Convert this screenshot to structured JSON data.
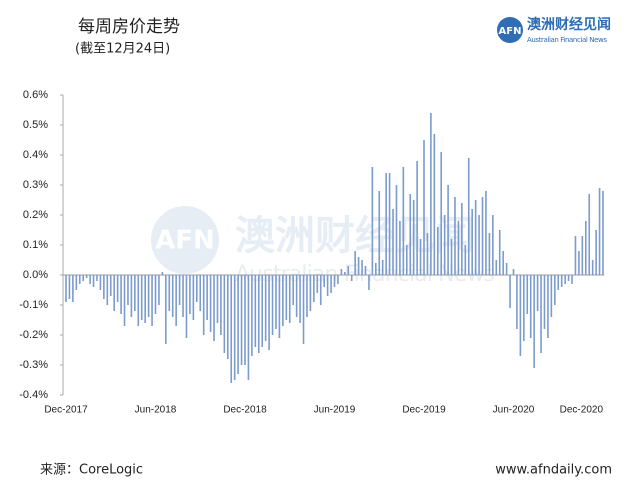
{
  "header": {
    "title": "每周房价走势",
    "subtitle": "(截至12月24日)",
    "logo_mark": "AFN",
    "logo_name": "澳洲财经见闻",
    "logo_sub": "Australian Financial News"
  },
  "footer": {
    "source": "来源：CoreLogic",
    "url": "www.afndaily.com"
  },
  "chart_data": {
    "type": "bar",
    "color": "#7b9bcc",
    "categories": [
      "Dec-2017",
      null,
      null,
      null,
      null,
      null,
      null,
      null,
      null,
      null,
      null,
      null,
      null,
      null,
      null,
      null,
      null,
      null,
      null,
      null,
      null,
      null,
      null,
      null,
      null,
      null,
      "Jun-2018",
      null,
      null,
      null,
      null,
      null,
      null,
      null,
      null,
      null,
      null,
      null,
      null,
      null,
      null,
      null,
      null,
      null,
      null,
      null,
      null,
      null,
      null,
      null,
      null,
      null,
      "Dec-2018",
      null,
      null,
      null,
      null,
      null,
      null,
      null,
      null,
      null,
      null,
      null,
      null,
      null,
      null,
      null,
      null,
      null,
      null,
      null,
      null,
      null,
      null,
      null,
      null,
      null,
      "Jun-2019",
      null,
      null,
      null,
      null,
      null,
      null,
      null,
      null,
      null,
      null,
      null,
      null,
      null,
      null,
      null,
      null,
      null,
      null,
      null,
      null,
      null,
      null,
      null,
      null,
      null,
      "Dec-2019",
      null,
      null,
      null,
      null,
      null,
      null,
      null,
      null,
      null,
      null,
      null,
      null,
      null,
      null,
      null,
      null,
      null,
      null,
      null,
      null,
      null,
      null,
      null,
      null,
      null,
      "Jun-2020",
      null,
      null,
      null,
      null,
      null,
      null,
      null,
      null,
      null,
      null,
      null,
      null,
      null,
      null,
      null,
      null,
      null,
      null,
      null,
      null,
      null,
      null,
      null,
      null,
      null,
      "Dec-2020"
    ],
    "values": [
      -0.09,
      -0.08,
      -0.09,
      -0.05,
      -0.03,
      -0.02,
      -0.01,
      -0.03,
      -0.04,
      -0.02,
      -0.05,
      -0.08,
      -0.1,
      -0.07,
      -0.12,
      -0.09,
      -0.13,
      -0.17,
      -0.1,
      -0.14,
      -0.12,
      -0.17,
      -0.15,
      -0.16,
      -0.14,
      -0.17,
      -0.13,
      -0.1,
      0.01,
      -0.23,
      -0.12,
      -0.14,
      -0.17,
      -0.1,
      -0.14,
      -0.21,
      -0.13,
      -0.15,
      -0.09,
      -0.12,
      -0.2,
      -0.15,
      -0.19,
      -0.22,
      -0.16,
      -0.2,
      -0.26,
      -0.28,
      -0.36,
      -0.35,
      -0.33,
      -0.3,
      -0.3,
      -0.35,
      -0.27,
      -0.24,
      -0.26,
      -0.24,
      -0.22,
      -0.25,
      -0.2,
      -0.18,
      -0.21,
      -0.17,
      -0.15,
      -0.16,
      -0.1,
      -0.14,
      -0.16,
      -0.23,
      -0.14,
      -0.12,
      -0.09,
      -0.06,
      -0.1,
      -0.04,
      -0.07,
      -0.06,
      -0.04,
      -0.03,
      0.02,
      0.01,
      0.03,
      -0.02,
      0.08,
      0.06,
      0.05,
      0.03,
      -0.05,
      0.36,
      0.04,
      0.28,
      0.05,
      0.34,
      0.34,
      0.22,
      0.3,
      0.18,
      0.36,
      0.1,
      0.27,
      0.25,
      0.38,
      0.12,
      0.45,
      0.14,
      0.54,
      0.47,
      0.16,
      0.41,
      0.2,
      0.3,
      0.12,
      0.26,
      0.18,
      0.24,
      0.1,
      0.39,
      0.22,
      0.25,
      0.2,
      0.26,
      0.28,
      0.14,
      0.2,
      0.05,
      0.15,
      0.08,
      0.04,
      -0.11,
      0.02,
      -0.18,
      -0.27,
      -0.22,
      -0.13,
      -0.21,
      -0.31,
      -0.12,
      -0.26,
      -0.18,
      -0.21,
      -0.14,
      -0.1,
      -0.05,
      -0.04,
      -0.03,
      -0.02,
      -0.03,
      0.13,
      0.08,
      0.13,
      0.18,
      0.27,
      0.05,
      0.15,
      0.29,
      0.28
    ],
    "ylim": [
      -0.4,
      0.6
    ],
    "yticks": [
      {
        "value": -0.4,
        "label": "-0.4%"
      },
      {
        "value": -0.3,
        "label": "-0.3%"
      },
      {
        "value": -0.2,
        "label": "-0.2%"
      },
      {
        "value": -0.1,
        "label": "-0.1%"
      },
      {
        "value": 0,
        "label": "0.0%"
      },
      {
        "value": 0.1,
        "label": "0.1%"
      },
      {
        "value": 0.2,
        "label": "0.2%"
      },
      {
        "value": 0.3,
        "label": "0.3%"
      },
      {
        "value": 0.4,
        "label": "0.4%"
      },
      {
        "value": 0.5,
        "label": "0.5%"
      },
      {
        "value": 0.6,
        "label": "0.6%"
      }
    ]
  }
}
